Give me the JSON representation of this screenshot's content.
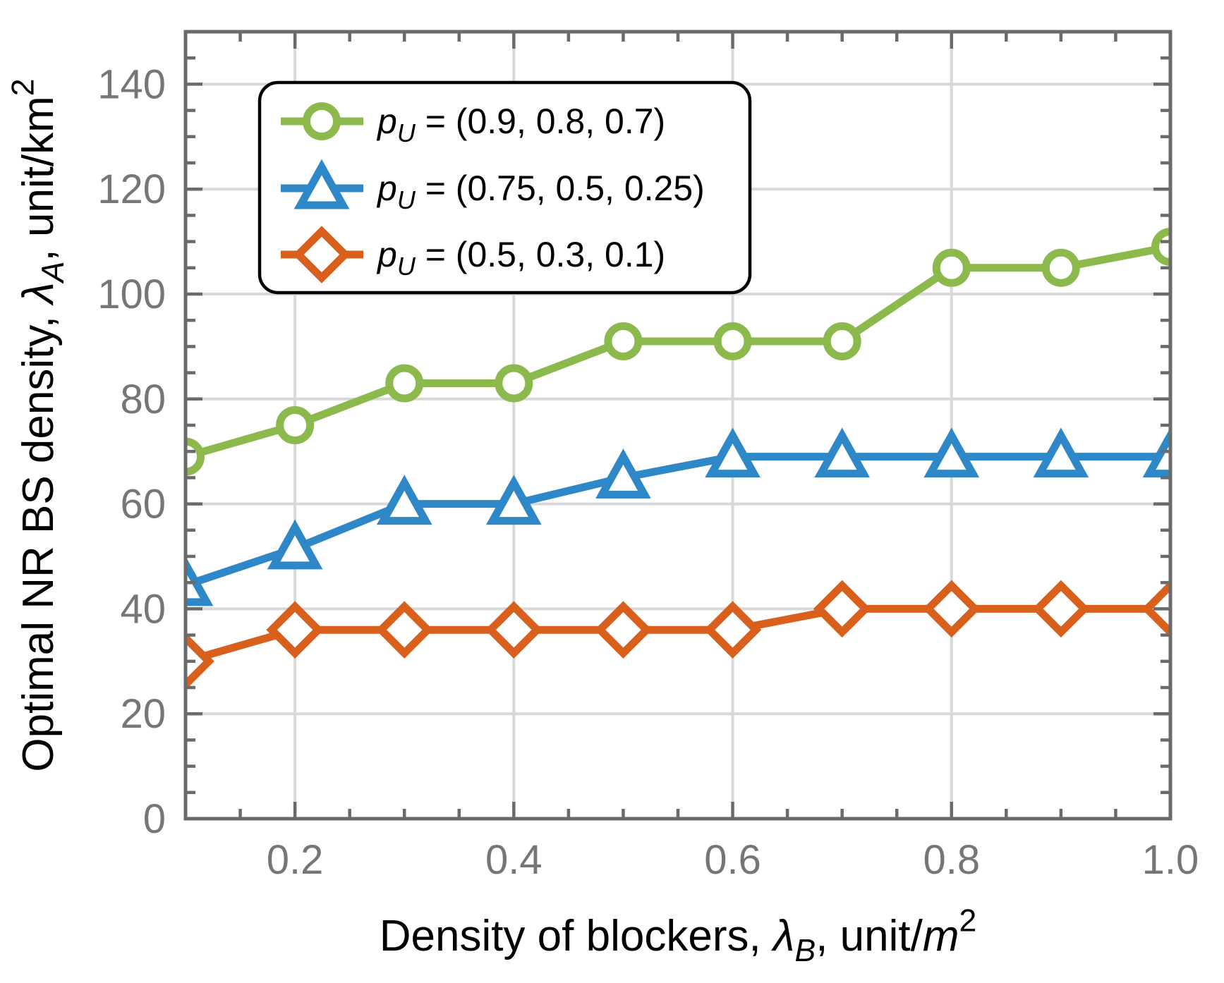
{
  "chart_data": {
    "type": "line",
    "title": "",
    "xlabel": "Density of blockers, λB, unit/m²",
    "ylabel": "Optimal NR BS density, λA, unit/km²",
    "xlabel_parts": [
      {
        "t": "Density of blockers, "
      },
      {
        "t": "λ",
        "i": true
      },
      {
        "t": "B",
        "i": true,
        "sub": true
      },
      {
        "t": ", unit/"
      },
      {
        "t": "m",
        "i": true
      },
      {
        "t": "2",
        "sup": true
      }
    ],
    "ylabel_parts": [
      {
        "t": "Optimal NR BS density, "
      },
      {
        "t": "λ",
        "i": true
      },
      {
        "t": "A",
        "i": true,
        "sub": true
      },
      {
        "t": ", unit/km"
      },
      {
        "t": "2",
        "sup": true
      }
    ],
    "xlim": [
      0.1,
      1.0
    ],
    "ylim": [
      0,
      150
    ],
    "x_major_ticks": [
      0.2,
      0.4,
      0.6,
      0.8,
      1.0
    ],
    "x_tick_labels": [
      "0.2",
      "0.4",
      "0.6",
      "0.8",
      "1.0"
    ],
    "x_minor_step": 0.05,
    "y_major_ticks": [
      0,
      20,
      40,
      60,
      80,
      100,
      120,
      140
    ],
    "y_tick_labels": [
      "0",
      "20",
      "40",
      "60",
      "80",
      "100",
      "120",
      "140"
    ],
    "y_minor_step": 5,
    "grid": true,
    "legend_position": "top-left",
    "x": [
      0.1,
      0.2,
      0.3,
      0.4,
      0.5,
      0.6,
      0.7,
      0.8,
      0.9,
      1.0
    ],
    "series": [
      {
        "name": "pU = (0.9, 0.8, 0.7)",
        "label_parts": [
          {
            "t": "p",
            "i": true
          },
          {
            "t": "U",
            "i": true,
            "sub": true
          },
          {
            "t": " = (0.9, 0.8, 0.7)"
          }
        ],
        "marker": "circle",
        "color": "#8CB94B",
        "values": [
          69,
          75,
          83,
          83,
          91,
          91,
          91,
          105,
          105,
          109
        ]
      },
      {
        "name": "pU = (0.75, 0.5, 0.25)",
        "label_parts": [
          {
            "t": "p",
            "i": true
          },
          {
            "t": "U",
            "i": true,
            "sub": true
          },
          {
            "t": " = (0.75, 0.5, 0.25)"
          }
        ],
        "marker": "triangle",
        "color": "#2E87C7",
        "values": [
          44.5,
          51.5,
          60,
          60,
          65,
          69,
          69,
          69,
          69,
          69
        ]
      },
      {
        "name": "pU = (0.5, 0.3, 0.1)",
        "label_parts": [
          {
            "t": "p",
            "i": true
          },
          {
            "t": "U",
            "i": true,
            "sub": true
          },
          {
            "t": " = (0.5, 0.3, 0.1)"
          }
        ],
        "marker": "diamond",
        "color": "#D8601C",
        "values": [
          30,
          36,
          36,
          36,
          36,
          36,
          40,
          40,
          40,
          40
        ]
      }
    ],
    "colors": {
      "frame": "#6A6A6A",
      "grid": "#D8D8D8",
      "tick_label": "#767676",
      "axis_label": "#000000",
      "legend_border": "#000000",
      "background": "#FFFFFF"
    }
  }
}
